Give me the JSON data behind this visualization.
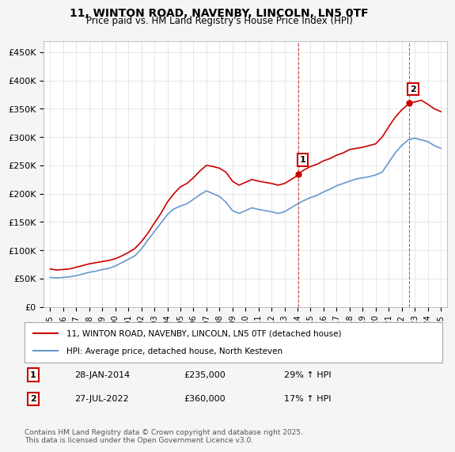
{
  "title": "11, WINTON ROAD, NAVENBY, LINCOLN, LN5 0TF",
  "subtitle": "Price paid vs. HM Land Registry's House Price Index (HPI)",
  "ylabel_ticks": [
    "£0",
    "£50K",
    "£100K",
    "£150K",
    "£200K",
    "£250K",
    "£300K",
    "£350K",
    "£400K",
    "£450K"
  ],
  "ytick_values": [
    0,
    50000,
    100000,
    150000,
    200000,
    250000,
    300000,
    350000,
    400000,
    450000
  ],
  "ylim": [
    0,
    470000
  ],
  "year_start": 1995,
  "year_end": 2025,
  "red_color": "#cc0000",
  "blue_color": "#6699cc",
  "dashed_color": "#cc0000",
  "grid_color": "#dddddd",
  "bg_color": "#f5f5f5",
  "plot_bg": "#ffffff",
  "legend1_label": "11, WINTON ROAD, NAVENBY, LINCOLN, LN5 0TF (detached house)",
  "legend2_label": "HPI: Average price, detached house, North Kesteven",
  "marker1_date": 2014.08,
  "marker1_value": 235000,
  "marker1_label": "1",
  "marker2_date": 2022.58,
  "marker2_value": 360000,
  "marker2_label": "2",
  "annotation1_date": "28-JAN-2014",
  "annotation1_price": "£235,000",
  "annotation1_hpi": "29% ↑ HPI",
  "annotation2_date": "27-JUL-2022",
  "annotation2_price": "£360,000",
  "annotation2_hpi": "17% ↑ HPI",
  "footer": "Contains HM Land Registry data © Crown copyright and database right 2025.\nThis data is licensed under the Open Government Licence v3.0.",
  "red_line_x": [
    1995.0,
    1995.5,
    1996.0,
    1996.5,
    1997.0,
    1997.5,
    1998.0,
    1998.5,
    1999.0,
    1999.5,
    2000.0,
    2000.5,
    2001.0,
    2001.5,
    2002.0,
    2002.5,
    2003.0,
    2003.5,
    2004.0,
    2004.5,
    2005.0,
    2005.5,
    2006.0,
    2006.5,
    2007.0,
    2007.5,
    2008.0,
    2008.5,
    2009.0,
    2009.5,
    2010.0,
    2010.5,
    2011.0,
    2011.5,
    2012.0,
    2012.5,
    2013.0,
    2013.5,
    2014.0,
    2014.08,
    2014.5,
    2015.0,
    2015.5,
    2016.0,
    2016.5,
    2017.0,
    2017.5,
    2018.0,
    2018.5,
    2019.0,
    2019.5,
    2020.0,
    2020.5,
    2021.0,
    2021.5,
    2022.0,
    2022.5,
    2022.58,
    2023.0,
    2023.5,
    2024.0,
    2024.5,
    2025.0
  ],
  "red_line_y": [
    67000,
    65000,
    66000,
    67000,
    70000,
    73000,
    76000,
    78000,
    80000,
    82000,
    85000,
    90000,
    96000,
    103000,
    115000,
    130000,
    148000,
    165000,
    185000,
    200000,
    212000,
    218000,
    228000,
    240000,
    250000,
    248000,
    245000,
    238000,
    222000,
    215000,
    220000,
    225000,
    222000,
    220000,
    218000,
    215000,
    218000,
    225000,
    232000,
    235000,
    242000,
    248000,
    252000,
    258000,
    262000,
    268000,
    272000,
    278000,
    280000,
    282000,
    285000,
    288000,
    300000,
    318000,
    335000,
    348000,
    358000,
    360000,
    362000,
    365000,
    358000,
    350000,
    345000
  ],
  "blue_line_x": [
    1995.0,
    1995.5,
    1996.0,
    1996.5,
    1997.0,
    1997.5,
    1998.0,
    1998.5,
    1999.0,
    1999.5,
    2000.0,
    2000.5,
    2001.0,
    2001.5,
    2002.0,
    2002.5,
    2003.0,
    2003.5,
    2004.0,
    2004.5,
    2005.0,
    2005.5,
    2006.0,
    2006.5,
    2007.0,
    2007.5,
    2008.0,
    2008.5,
    2009.0,
    2009.5,
    2010.0,
    2010.5,
    2011.0,
    2011.5,
    2012.0,
    2012.5,
    2013.0,
    2013.5,
    2014.0,
    2014.5,
    2015.0,
    2015.5,
    2016.0,
    2016.5,
    2017.0,
    2017.5,
    2018.0,
    2018.5,
    2019.0,
    2019.5,
    2020.0,
    2020.5,
    2021.0,
    2021.5,
    2022.0,
    2022.5,
    2023.0,
    2023.5,
    2024.0,
    2024.5,
    2025.0
  ],
  "blue_line_y": [
    52000,
    51000,
    52000,
    53000,
    55000,
    58000,
    61000,
    63000,
    66000,
    68000,
    72000,
    78000,
    84000,
    90000,
    102000,
    118000,
    133000,
    148000,
    163000,
    173000,
    178000,
    182000,
    190000,
    198000,
    205000,
    200000,
    195000,
    185000,
    170000,
    165000,
    170000,
    175000,
    172000,
    170000,
    168000,
    165000,
    168000,
    175000,
    182000,
    188000,
    193000,
    197000,
    203000,
    208000,
    214000,
    218000,
    222000,
    226000,
    228000,
    230000,
    233000,
    238000,
    255000,
    272000,
    285000,
    295000,
    298000,
    295000,
    292000,
    285000,
    280000
  ]
}
